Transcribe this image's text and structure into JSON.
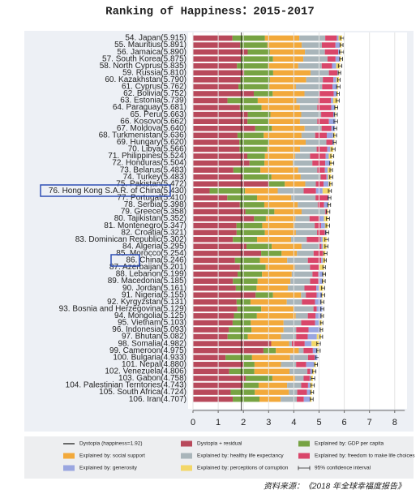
{
  "chart_data": {
    "type": "stacked-bar-horizontal",
    "title": "Ranking of Happiness：2015-2017",
    "source": "资料来源：《2018 年全球幸福度报告》",
    "categories": [
      "54. Japan(5.915)",
      "55. Mauritius(5.891)",
      "56. Jamaica(5.890)",
      "57. South Korea(5.875)",
      "58. North Cyprus(5.835)",
      "59. Russia(5.810)",
      "60. Kazakhstan(5.790)",
      "61. Cyprus(5.762)",
      "62. Bolivia(5.752)",
      "63. Estonia(5.739)",
      "64. Paraguay(5.681)",
      "65. Peru(5.663)",
      "66. Kosovo(5.662)",
      "67. Moldova(5.640)",
      "68. Turkmenistan(5.636)",
      "69. Hungary(5.620)",
      "70. Libya(5.566)",
      "71. Philippines(5.524)",
      "72. Honduras(5.504)",
      "73. Belarus(5.483)",
      "74. Turkey(5.483)",
      "75. Pakistan(5.472)",
      "76. Hong Kong S.A.R. of China(5.430)",
      "77. Portugal(5.410)",
      "78. Serbia(5.398)",
      "79. Greece(5.358)",
      "80. Tajikistan(5.352)",
      "81. Montenegro(5.347)",
      "82. Croatia(5.321)",
      "83. Dominican Republic(5.302)",
      "84. Algeria(5.295)",
      "85. Morocco(5.254)",
      "86. China(5.246)",
      "87. Azerbaijan(5.201)",
      "88. Lebanon(5.199)",
      "89. Macedonia(5.185)",
      "90. Jordan(5.161)",
      "91. Nigeria(5.155)",
      "92. Kyrgyzstan(5.131)",
      "93. Bosnia and Herzegovina(5.129)",
      "94. Mongolia(5.125)",
      "95. Vietnam(5.103)",
      "96. Indonesia(5.093)",
      "97. Bhutan(5.082)",
      "98. Somalia(4.982)",
      "99. Cameroon(4.975)",
      "100. Bulgaria(4.933)",
      "101. Nepal(4.880)",
      "102. Venezuela(4.806)",
      "103. Gabon(4.758)",
      "104. Palestinian Territories(4.743)",
      "105. South Africa(4.724)",
      "106. Iran(4.707)"
    ],
    "series": [
      {
        "name": "Dystopia + residual",
        "color": "#b8495b",
        "values": [
          1.565,
          1.871,
          2.17,
          1.905,
          1.745,
          2.03,
          1.88,
          1.802,
          2.412,
          1.369,
          1.861,
          2.173,
          2.162,
          2.47,
          1.766,
          1.84,
          1.846,
          2.154,
          2.244,
          1.603,
          1.963,
          2.992,
          0.66,
          1.36,
          1.858,
          2.078,
          2.422,
          1.727,
          1.731,
          1.582,
          2.125,
          2.704,
          1.666,
          1.861,
          1.769,
          1.585,
          1.701,
          2.485,
          1.731,
          1.759,
          1.625,
          1.573,
          1.423,
          1.372,
          3.102,
          2.795,
          1.293,
          2.01,
          1.436,
          2.088,
          1.963,
          1.494,
          1.577
        ]
      },
      {
        "name": "Explained by: GDP per capita",
        "color": "#77a343",
        "values": [
          1.29,
          1.08,
          0.88,
          1.27,
          1.23,
          1.15,
          1.17,
          1.23,
          0.75,
          1.2,
          0.86,
          0.9,
          0.85,
          0.66,
          1.04,
          1.18,
          1.1,
          0.7,
          0.59,
          1.07,
          1.15,
          0.65,
          1.4,
          1.18,
          0.97,
          1.15,
          0.47,
          1.02,
          1.12,
          0.96,
          1.0,
          0.81,
          0.99,
          1.02,
          0.97,
          0.98,
          0.82,
          0.69,
          0.55,
          0.95,
          0.91,
          0.72,
          0.9,
          0.8,
          0.0,
          0.49,
          1.05,
          0.43,
          1.0,
          1.06,
          0.64,
          0.96,
          1.06
        ]
      },
      {
        "name": "Explained by: social support",
        "color": "#f2a93b",
        "values": [
          1.36,
          1.36,
          1.39,
          1.2,
          1.2,
          1.48,
          1.44,
          1.05,
          1.26,
          1.53,
          1.52,
          1.22,
          1.23,
          1.3,
          1.5,
          1.45,
          1.3,
          1.2,
          1.13,
          1.5,
          1.16,
          0.81,
          1.3,
          1.36,
          1.33,
          1.08,
          1.17,
          1.28,
          1.23,
          1.35,
          1.18,
          0.61,
          1.08,
          1.16,
          1.18,
          1.3,
          1.24,
          1.11,
          1.44,
          1.29,
          1.54,
          1.3,
          1.27,
          1.32,
          0.71,
          0.91,
          1.51,
          1.05,
          1.39,
          0.9,
          1.13,
          1.35,
          0.84
        ]
      },
      {
        "name": "Explained by: healthy life expectancy",
        "color": "#a9b5ba",
        "values": [
          1.03,
          0.8,
          0.79,
          0.96,
          0.93,
          0.73,
          0.66,
          1.04,
          0.6,
          0.87,
          0.69,
          0.79,
          0.69,
          0.67,
          0.54,
          0.82,
          0.66,
          0.59,
          0.77,
          0.76,
          0.79,
          0.42,
          1.03,
          0.96,
          0.79,
          0.94,
          0.56,
          0.8,
          0.84,
          0.62,
          0.7,
          0.66,
          0.82,
          0.6,
          0.82,
          0.78,
          0.66,
          0.19,
          0.6,
          0.78,
          0.48,
          0.7,
          0.5,
          0.6,
          0.11,
          0.19,
          0.71,
          0.6,
          0.71,
          0.34,
          0.56,
          0.33,
          0.64
        ]
      },
      {
        "name": "Explained by: freedom to make life choices",
        "color": "#d9466a",
        "values": [
          0.46,
          0.54,
          0.53,
          0.32,
          0.41,
          0.34,
          0.42,
          0.41,
          0.56,
          0.5,
          0.55,
          0.48,
          0.46,
          0.39,
          0.46,
          0.24,
          0.42,
          0.62,
          0.51,
          0.3,
          0.23,
          0.31,
          0.49,
          0.5,
          0.25,
          0.07,
          0.41,
          0.25,
          0.31,
          0.55,
          0.09,
          0.37,
          0.53,
          0.36,
          0.23,
          0.33,
          0.47,
          0.43,
          0.52,
          0.13,
          0.31,
          0.55,
          0.49,
          0.46,
          0.51,
          0.37,
          0.26,
          0.4,
          0.12,
          0.24,
          0.27,
          0.39,
          0.28
        ]
      },
      {
        "name": "Explained by: generosity",
        "color": "#9aa6e0",
        "values": [
          0.07,
          0.17,
          0.09,
          0.16,
          0.16,
          0.05,
          0.12,
          0.19,
          0.11,
          0.09,
          0.13,
          0.07,
          0.26,
          0.14,
          0.25,
          0.07,
          0.12,
          0.12,
          0.18,
          0.11,
          0.07,
          0.2,
          0.26,
          0.04,
          0.17,
          0.0,
          0.16,
          0.16,
          0.07,
          0.08,
          0.06,
          0.01,
          0.06,
          0.02,
          0.2,
          0.17,
          0.13,
          0.21,
          0.26,
          0.22,
          0.24,
          0.18,
          0.49,
          0.36,
          0.27,
          0.18,
          0.11,
          0.31,
          0.08,
          0.04,
          0.09,
          0.14,
          0.24
        ]
      },
      {
        "name": "Explained by: perceptions of corruption",
        "color": "#f3d768",
        "values": [
          0.14,
          0.07,
          0.04,
          0.06,
          0.16,
          0.03,
          0.1,
          0.04,
          0.06,
          0.18,
          0.07,
          0.03,
          0.01,
          0.01,
          0.08,
          0.02,
          0.12,
          0.14,
          0.08,
          0.14,
          0.12,
          0.09,
          0.29,
          0.01,
          0.03,
          0.04,
          0.16,
          0.11,
          0.02,
          0.16,
          0.14,
          0.09,
          0.1,
          0.18,
          0.03,
          0.04,
          0.14,
          0.04,
          0.03,
          0.0,
          0.02,
          0.08,
          0.02,
          0.17,
          0.28,
          0.04,
          0.0,
          0.08,
          0.07,
          0.09,
          0.09,
          0.06,
          0.07
        ]
      }
    ],
    "ci": [
      0.07,
      0.06,
      0.09,
      0.06,
      0.07,
      0.05,
      0.05,
      0.07,
      0.05,
      0.06,
      0.06,
      0.06,
      0.07,
      0.06,
      0.06,
      0.06,
      0.07,
      0.06,
      0.08,
      0.05,
      0.06,
      0.05,
      0.06,
      0.06,
      0.06,
      0.07,
      0.06,
      0.07,
      0.06,
      0.07,
      0.06,
      0.06,
      0.04,
      0.05,
      0.06,
      0.06,
      0.06,
      0.07,
      0.06,
      0.06,
      0.05,
      0.05,
      0.05,
      0.06,
      0.07,
      0.07,
      0.07,
      0.06,
      0.07,
      0.07,
      0.07,
      0.06,
      0.06
    ],
    "ci_label": "95% confidence interval",
    "ci_color": "#222222",
    "dystopia_line": {
      "label": "Dystopia (happiness=1.92)",
      "value": 1.92,
      "color": "#111111"
    },
    "xlim": [
      0,
      8.4
    ],
    "xticks": [
      0,
      1,
      2,
      3,
      4,
      5,
      6,
      7,
      8
    ],
    "grid": true
  }
}
